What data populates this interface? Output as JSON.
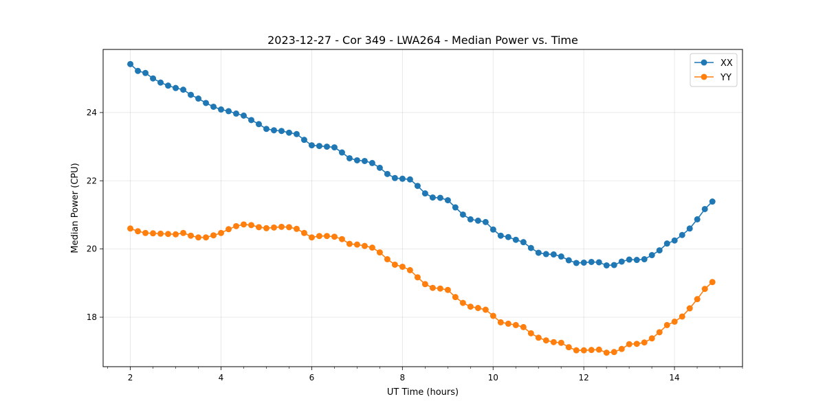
{
  "chart_data": {
    "type": "line",
    "title": "2023-12-27 - Cor 349 - LWA264 - Median Power vs. Time",
    "xlabel": "UT Time (hours)",
    "ylabel": "Median Power (CPU)",
    "xlim": [
      1.4,
      15.5
    ],
    "ylim": [
      16.55,
      25.85
    ],
    "xticks": [
      2,
      4,
      6,
      8,
      10,
      12,
      14
    ],
    "yticks": [
      18,
      20,
      22,
      24
    ],
    "x_minor_step": 0.5,
    "grid": true,
    "legend_position": "top-right",
    "x_start": 2.0,
    "x_step": 0.1667,
    "series": [
      {
        "name": "XX",
        "color": "#1f77b4",
        "values": [
          25.42,
          25.22,
          25.16,
          25.0,
          24.88,
          24.79,
          24.72,
          24.67,
          24.52,
          24.41,
          24.28,
          24.17,
          24.09,
          24.04,
          23.97,
          23.91,
          23.78,
          23.66,
          23.52,
          23.48,
          23.46,
          23.41,
          23.37,
          23.2,
          23.04,
          23.02,
          23.0,
          22.98,
          22.83,
          22.66,
          22.6,
          22.58,
          22.52,
          22.38,
          22.2,
          22.08,
          22.06,
          22.04,
          21.85,
          21.63,
          21.51,
          21.5,
          21.43,
          21.22,
          21.01,
          20.87,
          20.83,
          20.79,
          20.57,
          20.39,
          20.35,
          20.27,
          20.2,
          20.03,
          19.89,
          19.85,
          19.84,
          19.78,
          19.67,
          19.59,
          19.6,
          19.62,
          19.61,
          19.52,
          19.53,
          19.63,
          19.69,
          19.68,
          19.7,
          19.82,
          19.96,
          20.16,
          20.25,
          20.41,
          20.6,
          20.87,
          21.17,
          21.39
        ]
      },
      {
        "name": "YY",
        "color": "#ff7f0e",
        "values": [
          20.6,
          20.52,
          20.47,
          20.46,
          20.45,
          20.44,
          20.43,
          20.47,
          20.39,
          20.34,
          20.34,
          20.4,
          20.47,
          20.58,
          20.67,
          20.72,
          20.7,
          20.64,
          20.61,
          20.63,
          20.65,
          20.64,
          20.59,
          20.47,
          20.34,
          20.38,
          20.38,
          20.36,
          20.29,
          20.15,
          20.13,
          20.09,
          20.04,
          19.9,
          19.7,
          19.54,
          19.48,
          19.38,
          19.17,
          18.97,
          18.86,
          18.84,
          18.8,
          18.59,
          18.42,
          18.31,
          18.27,
          18.22,
          18.04,
          17.85,
          17.81,
          17.77,
          17.71,
          17.53,
          17.4,
          17.32,
          17.27,
          17.25,
          17.12,
          17.03,
          17.03,
          17.04,
          17.05,
          16.96,
          16.98,
          17.07,
          17.21,
          17.22,
          17.26,
          17.38,
          17.56,
          17.77,
          17.87,
          18.02,
          18.26,
          18.53,
          18.83,
          19.03
        ]
      }
    ]
  }
}
